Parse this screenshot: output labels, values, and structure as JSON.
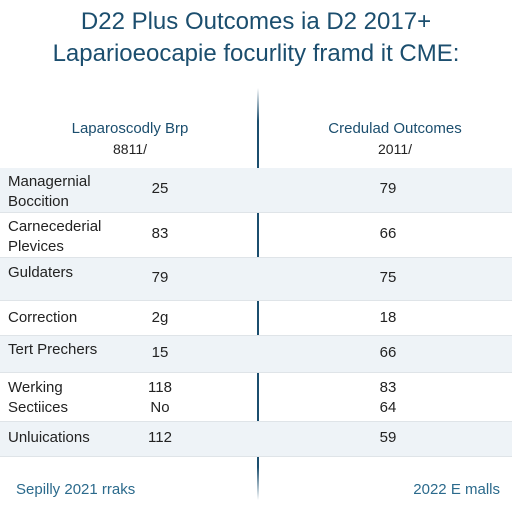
{
  "title": {
    "line1": "D22 Plus Outcomes ia D2 2017+",
    "line2": "Laparioeocapie focurlity framd it CME:"
  },
  "columns": {
    "left": {
      "name": "Laparoscodly Brp",
      "sub": "8811/"
    },
    "right": {
      "name": "Credulad Outcomes",
      "sub": "2011/"
    }
  },
  "rows": [
    {
      "label": "Managernial\nBoccition",
      "left": "25",
      "right": "79"
    },
    {
      "label": "Carnecederial\nPlevices",
      "left": "83",
      "right": "66"
    },
    {
      "label": "Guldaters",
      "left": "79",
      "right": "75"
    },
    {
      "label": "Correction",
      "left": "2g",
      "right": "18"
    },
    {
      "label": "Tert Prechers",
      "left": "15",
      "right": "66"
    },
    {
      "label": "Werking\nSectiices",
      "left": "118\nNo",
      "right": "83\n64"
    },
    {
      "label": "Unluications",
      "left": "112",
      "right": "59"
    }
  ],
  "footer": {
    "left": "Sepilly 2021 rraks",
    "right": "2022 E malls"
  }
}
